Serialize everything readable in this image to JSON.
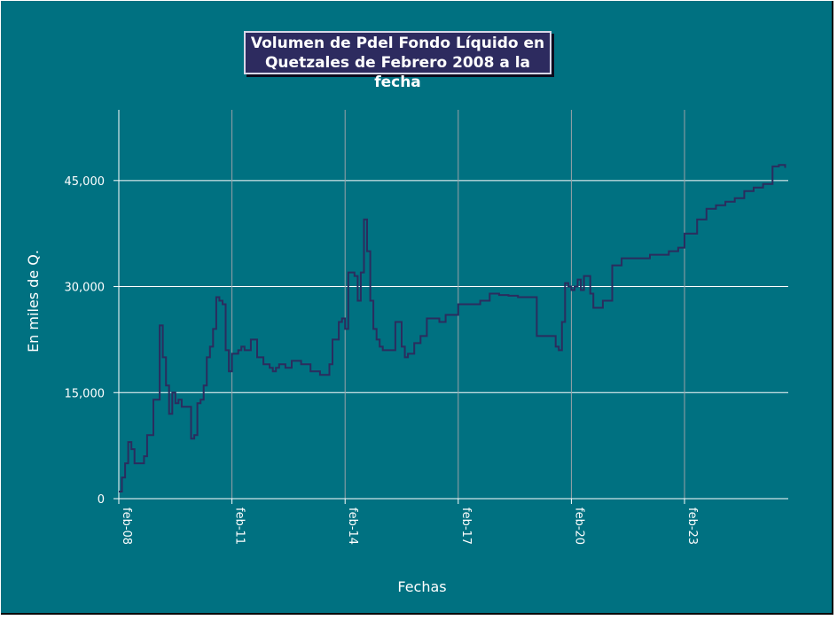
{
  "chart_data": {
    "type": "line",
    "title_line1": "Volumen de Pdel Fondo Líquido en",
    "title_line2": "Quetzales de Febrero 2008 a la fecha",
    "xlabel": "Fechas",
    "ylabel": "En miles de Q.",
    "ylim": [
      0,
      55000
    ],
    "yticks": [
      0,
      15000,
      30000,
      45000
    ],
    "ytick_labels": [
      "0",
      "15,000",
      "30,000",
      "45,000"
    ],
    "xlim": [
      "2008-02",
      "2025-11"
    ],
    "xticks": [
      "2008-02",
      "2011-02",
      "2014-02",
      "2017-02",
      "2020-02",
      "2023-02"
    ],
    "xtick_labels": [
      "feb-08",
      "feb-11",
      "feb-14",
      "feb-17",
      "feb-20",
      "feb-23"
    ],
    "grid": "on",
    "series": [
      {
        "color": "#2b2c5e",
        "x": [
          "2008-02",
          "2008-03",
          "2008-04",
          "2008-05",
          "2008-06",
          "2008-07",
          "2008-09",
          "2008-10",
          "2008-11",
          "2009-01",
          "2009-03",
          "2009-04",
          "2009-05",
          "2009-06",
          "2009-07",
          "2009-08",
          "2009-09",
          "2009-10",
          "2009-11",
          "2009-12",
          "2010-01",
          "2010-02",
          "2010-03",
          "2010-04",
          "2010-05",
          "2010-06",
          "2010-07",
          "2010-08",
          "2010-09",
          "2010-10",
          "2010-11",
          "2010-12",
          "2011-01",
          "2011-02",
          "2011-04",
          "2011-05",
          "2011-06",
          "2011-07",
          "2011-08",
          "2011-10",
          "2011-12",
          "2012-02",
          "2012-03",
          "2012-04",
          "2012-05",
          "2012-07",
          "2012-09",
          "2012-12",
          "2013-03",
          "2013-06",
          "2013-09",
          "2013-10",
          "2013-12",
          "2014-01",
          "2014-02",
          "2014-03",
          "2014-04",
          "2014-05",
          "2014-06",
          "2014-07",
          "2014-08",
          "2014-09",
          "2014-10",
          "2014-11",
          "2014-12",
          "2015-01",
          "2015-02",
          "2015-04",
          "2015-06",
          "2015-08",
          "2015-09",
          "2015-10",
          "2015-12",
          "2016-02",
          "2016-04",
          "2016-06",
          "2016-08",
          "2016-10",
          "2017-02",
          "2017-06",
          "2017-09",
          "2017-12",
          "2018-03",
          "2018-06",
          "2018-09",
          "2018-12",
          "2019-03",
          "2019-06",
          "2019-09",
          "2019-10",
          "2019-11",
          "2019-12",
          "2020-01",
          "2020-02",
          "2020-03",
          "2020-04",
          "2020-05",
          "2020-06",
          "2020-08",
          "2020-09",
          "2020-10",
          "2020-12",
          "2021-03",
          "2021-06",
          "2021-09",
          "2021-12",
          "2022-03",
          "2022-06",
          "2022-09",
          "2022-12",
          "2023-02",
          "2023-06",
          "2023-09",
          "2023-12",
          "2024-03",
          "2024-06",
          "2024-09",
          "2024-12",
          "2025-03",
          "2025-06",
          "2025-08",
          "2025-10"
        ],
        "y": [
          1000,
          3000,
          5000,
          8000,
          7000,
          5000,
          5000,
          6000,
          9000,
          14000,
          24500,
          20000,
          16000,
          12000,
          15000,
          13500,
          14000,
          13000,
          13000,
          13000,
          8500,
          9000,
          13500,
          14000,
          16000,
          20000,
          21500,
          24000,
          28500,
          28000,
          27500,
          21000,
          18000,
          20500,
          21000,
          21500,
          21000,
          21000,
          22500,
          20000,
          19000,
          18500,
          18000,
          18500,
          19000,
          18500,
          19500,
          19000,
          18000,
          17500,
          19000,
          22500,
          25000,
          25500,
          24000,
          32000,
          32000,
          31500,
          28000,
          32000,
          39500,
          35000,
          28000,
          24000,
          22500,
          21500,
          21000,
          21000,
          25000,
          21500,
          20000,
          20500,
          22000,
          23000,
          25500,
          25500,
          25000,
          26000,
          27500,
          27500,
          28000,
          29000,
          28800,
          28700,
          28500,
          28500,
          23000,
          23000,
          21500,
          21000,
          25000,
          30500,
          30000,
          29500,
          30000,
          31000,
          29500,
          31500,
          29000,
          27000,
          27000,
          28000,
          33000,
          34000,
          34000,
          34000,
          34500,
          34500,
          35000,
          35500,
          37500,
          39500,
          41000,
          41500,
          42000,
          42500,
          43500,
          44000,
          44500,
          47000,
          47200,
          46800
        ]
      }
    ]
  }
}
